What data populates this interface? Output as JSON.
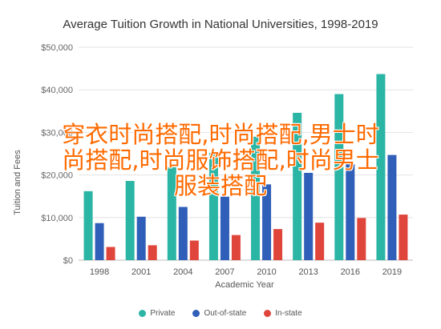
{
  "chart_data": {
    "type": "bar",
    "title": "Average Tuition Growth in National Universities, 1998-2019",
    "xlabel": "Academic Year",
    "ylabel": "Tuition and Fees",
    "ylim": [
      0,
      50000
    ],
    "yticks": [
      0,
      10000,
      20000,
      30000,
      40000,
      50000
    ],
    "ytick_labels": [
      "$0",
      "$10,000",
      "$20,000",
      "$30,000",
      "$40,000",
      "$50,000"
    ],
    "grid": true,
    "legend_position": "bottom",
    "categories": [
      "1998",
      "2001",
      "2004",
      "2007",
      "2010",
      "2013",
      "2016",
      "2019"
    ],
    "series": [
      {
        "name": "Private",
        "color": "#2bb5a5",
        "values": [
          16200,
          18600,
          21800,
          25200,
          29000,
          34600,
          39000,
          43700
        ]
      },
      {
        "name": "Out-of-state",
        "color": "#2f5fb8",
        "values": [
          8700,
          10200,
          12500,
          14900,
          17800,
          20500,
          22500,
          24700
        ]
      },
      {
        "name": "In-state",
        "color": "#e0453c",
        "values": [
          3100,
          3500,
          4600,
          5900,
          7300,
          8800,
          9900,
          10700
        ]
      }
    ]
  },
  "watermark": {
    "line1": "穿衣时尚搭配,时尚搭配,男士时",
    "line2": "尚搭配,时尚服饰搭配,时尚男士",
    "line3": "服装搭配"
  }
}
